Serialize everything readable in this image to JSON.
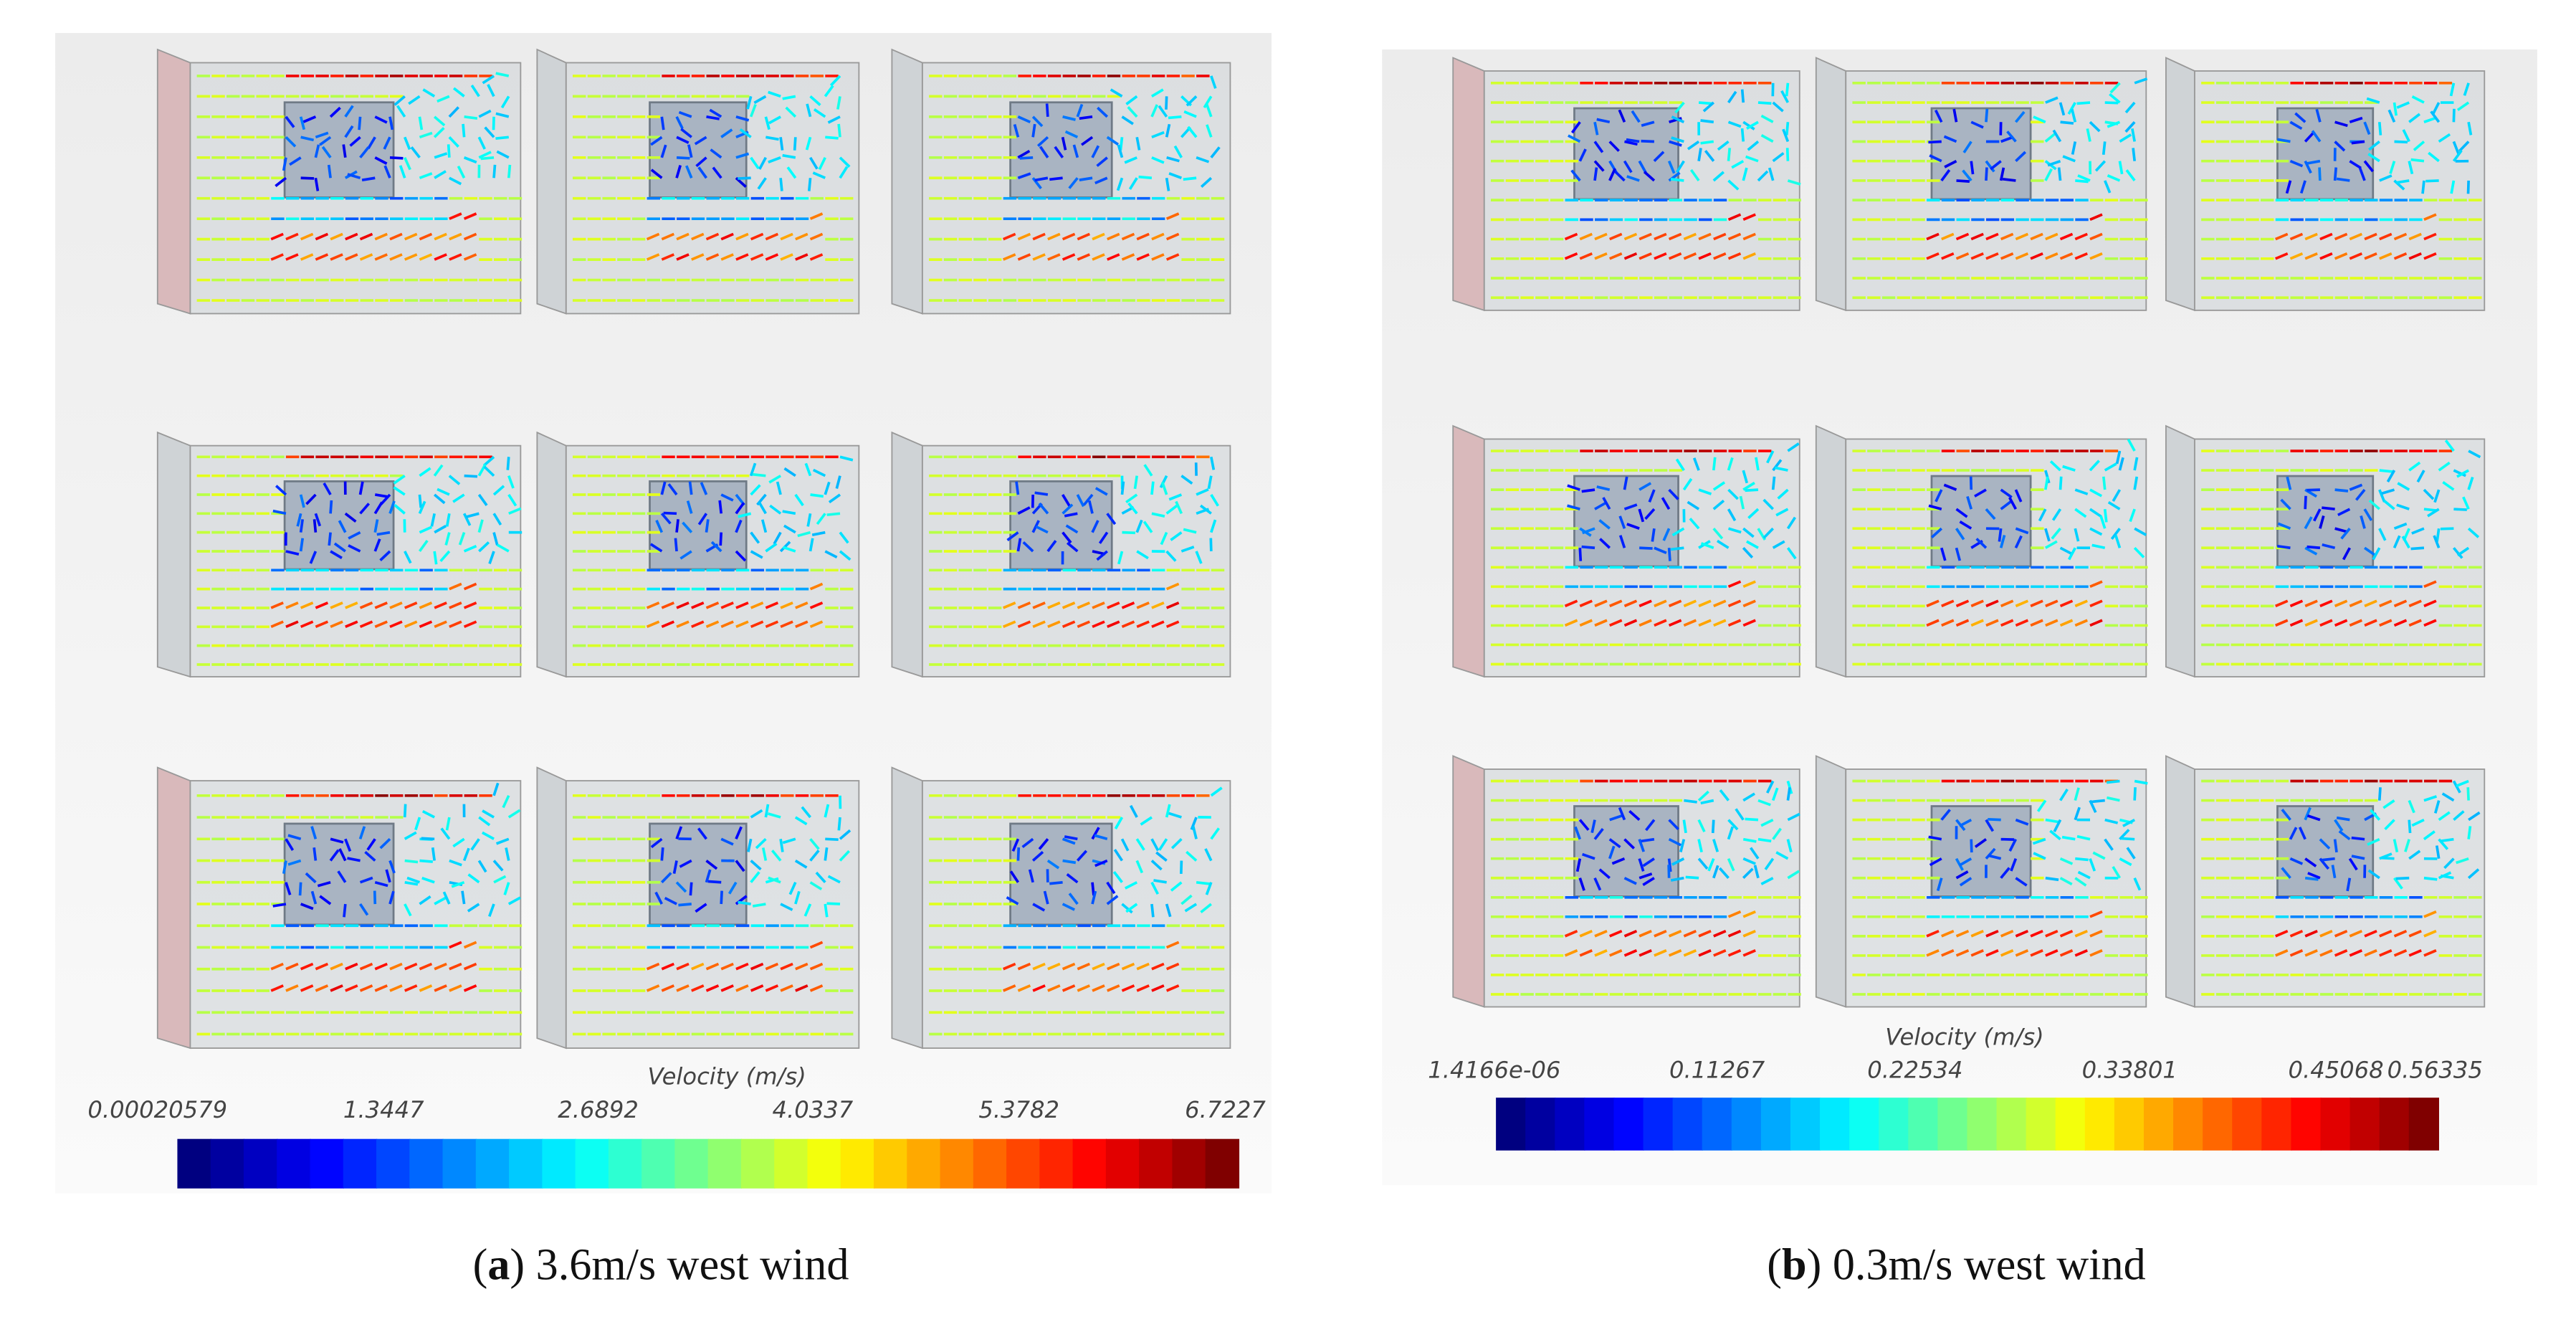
{
  "panels": [
    {
      "caption": {
        "open": "(",
        "label": "a",
        "close": ")",
        "text": " 3.6m/s west wind"
      },
      "colorbar": {
        "title": "Velocity (m/s)",
        "ticks": [
          "0.00020579",
          "1.3447",
          "2.6892",
          "4.0337",
          "5.3782",
          "6.7227"
        ]
      }
    },
    {
      "caption": {
        "open": "(",
        "label": "b",
        "close": ")",
        "text": " 0.3m/s west wind"
      },
      "colorbar": {
        "title": "Velocity (m/s)",
        "ticks": [
          "1.4166e-06",
          "0.11267",
          "0.22534",
          "0.33801",
          "0.45068",
          "0.56335"
        ]
      }
    }
  ]
}
